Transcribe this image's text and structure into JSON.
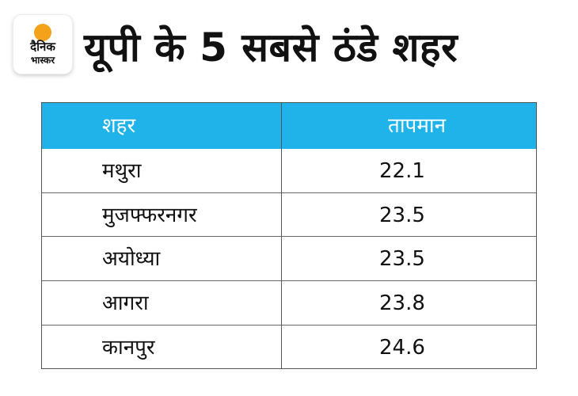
{
  "logo": {
    "line1": "दैनिक",
    "line2": "भास्कर",
    "sun_color": "#f5a21b"
  },
  "title": "यूपी के 5 सबसे ठंडे शहर",
  "table": {
    "headers": [
      "शहर",
      "तापमान"
    ],
    "header_color": "#1fb3ea",
    "rows": [
      {
        "city": "मथुरा",
        "temp": "22.1"
      },
      {
        "city": "मुजफ्फरनगर",
        "temp": "23.5"
      },
      {
        "city": "अयोध्या",
        "temp": "23.5"
      },
      {
        "city": "आगरा",
        "temp": "23.8"
      },
      {
        "city": "कानपुर",
        "temp": "24.6"
      }
    ]
  }
}
